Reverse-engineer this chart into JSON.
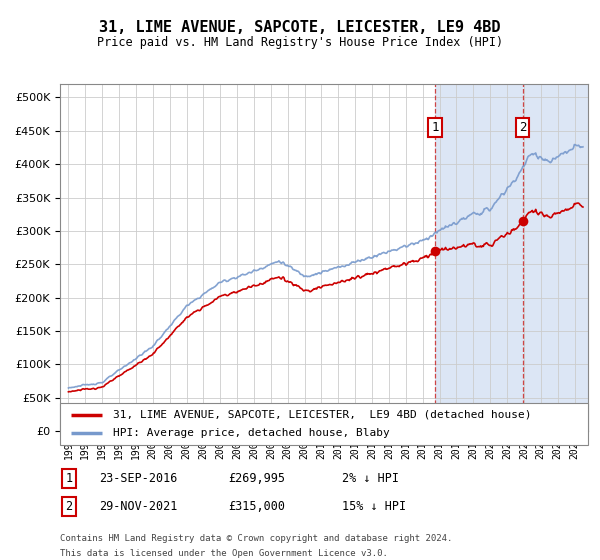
{
  "title": "31, LIME AVENUE, SAPCOTE, LEICESTER, LE9 4BD",
  "subtitle": "Price paid vs. HM Land Registry's House Price Index (HPI)",
  "background_color": "#ffffff",
  "plot_bg_color_left": "#ffffff",
  "plot_bg_color_right": "#dce6f5",
  "grid_color": "#cccccc",
  "hpi_line_color": "#7799cc",
  "price_line_color": "#cc0000",
  "sale1_year": 2016.73,
  "sale1_value": 269995,
  "sale1_date": "23-SEP-2016",
  "sale1_price": "£269,995",
  "sale1_label": "2% ↓ HPI",
  "sale2_year": 2021.92,
  "sale2_value": 315000,
  "sale2_date": "29-NOV-2021",
  "sale2_price": "£315,000",
  "sale2_label": "15% ↓ HPI",
  "legend_label1": "31, LIME AVENUE, SAPCOTE, LEICESTER,  LE9 4BD (detached house)",
  "legend_label2": "HPI: Average price, detached house, Blaby",
  "footer1": "Contains HM Land Registry data © Crown copyright and database right 2024.",
  "footer2": "This data is licensed under the Open Government Licence v3.0.",
  "ylim": [
    0,
    520000
  ],
  "xlim_start": 1994.5,
  "xlim_end": 2025.8,
  "yticks": [
    0,
    50000,
    100000,
    150000,
    200000,
    250000,
    300000,
    350000,
    400000,
    450000,
    500000
  ]
}
